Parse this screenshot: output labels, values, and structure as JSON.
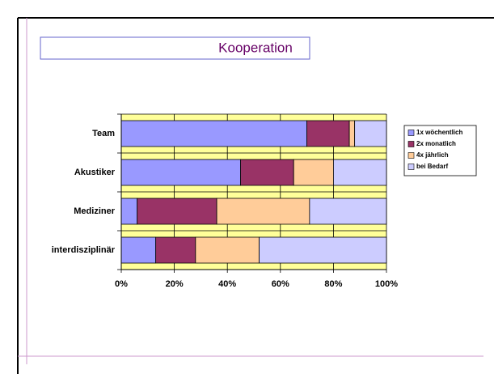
{
  "chart_data": {
    "type": "bar",
    "orientation": "horizontal",
    "stacked": true,
    "title": "Kooperation",
    "categories": [
      "Team",
      "Akustiker",
      "Mediziner",
      "interdisziplinär"
    ],
    "series": [
      {
        "name": "1x wöchentlich",
        "color": "#9999ff",
        "values": [
          70,
          45,
          6,
          13
        ]
      },
      {
        "name": "2x monatlich",
        "color": "#993366",
        "values": [
          16,
          20,
          30,
          15
        ]
      },
      {
        "name": "4x jährlich",
        "color": "#ffcc99",
        "values": [
          2,
          15,
          35,
          24
        ]
      },
      {
        "name": "bei Bedarf",
        "color": "#ccccff",
        "values": [
          12,
          20,
          29,
          48
        ]
      }
    ],
    "xlim": [
      0,
      100
    ],
    "xticks": [
      {
        "value": 0,
        "label": "0%"
      },
      {
        "value": 20,
        "label": "20%"
      },
      {
        "value": 40,
        "label": "40%"
      },
      {
        "value": 60,
        "label": "60%"
      },
      {
        "value": 80,
        "label": "80%"
      },
      {
        "value": 100,
        "label": "100%"
      }
    ],
    "grid": true,
    "plot_background": "#ffff99",
    "legend": "right"
  }
}
